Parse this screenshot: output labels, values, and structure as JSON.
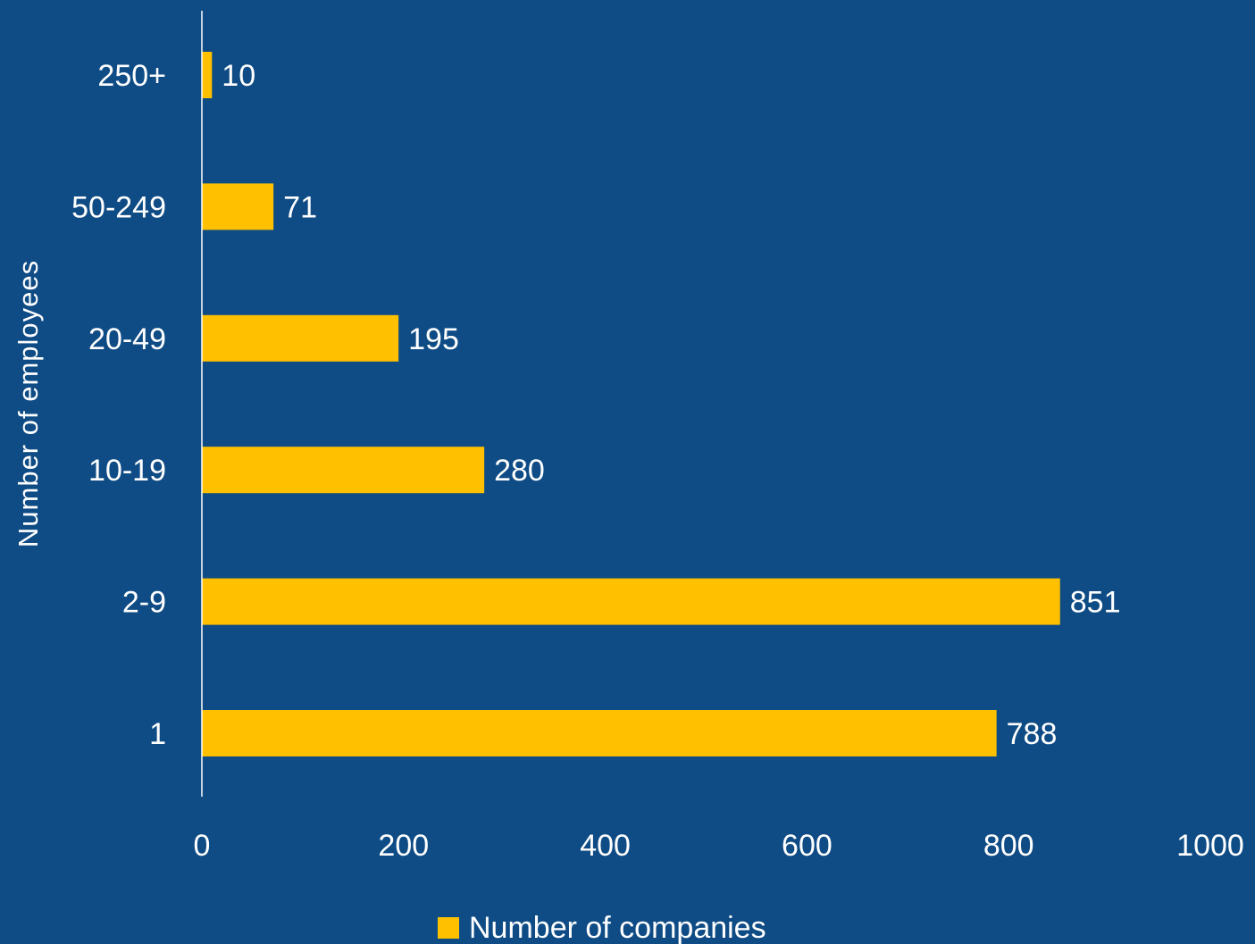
{
  "chart_data": {
    "type": "bar",
    "orientation": "horizontal",
    "categories": [
      "250+",
      "50-249",
      "20-49",
      "10-19",
      "2-9",
      "1"
    ],
    "series": [
      {
        "name": "Number of companies",
        "values": [
          10,
          71,
          195,
          280,
          851,
          788
        ]
      }
    ],
    "xlabel": "",
    "ylabel": "Number of employees",
    "xlim": [
      0,
      1000
    ],
    "x_ticks": [
      0,
      200,
      400,
      600,
      800,
      1000
    ],
    "grid": false,
    "legend": "bottom",
    "colors": {
      "background": "#0F4C85",
      "bar": "#FFC000",
      "text": "#FFFFFF",
      "axis": "#FFFFFF"
    }
  }
}
